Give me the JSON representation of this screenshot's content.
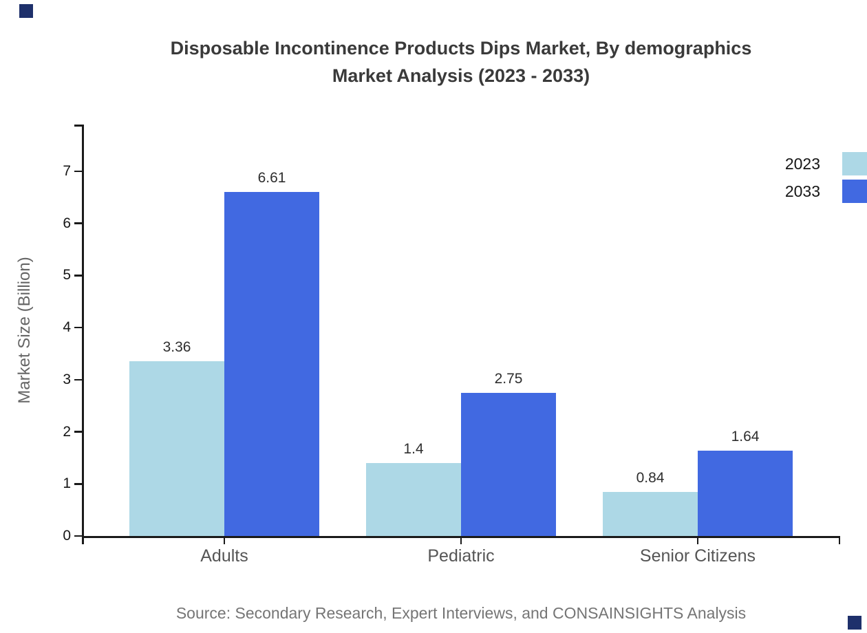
{
  "title": {
    "line1": "Disposable Incontinence Products Dips Market, By demographics",
    "line2": "Market Analysis (2023 - 2033)"
  },
  "source": "Source: Secondary Research, Expert Interviews, and CONSAINSIGHTS Analysis",
  "colors": {
    "series_2023": "#ADD8E6",
    "series_2033": "#4169E1",
    "axis": "#1a1a1a",
    "title_text": "#3a3a3a",
    "category_text": "#555555",
    "source_text": "#757575",
    "corner_mark": "#1e306b"
  },
  "chart_data": {
    "type": "bar",
    "title": "Disposable Incontinence Products Dips Market, By demographics Market Analysis (2023 - 2033)",
    "categories": [
      "Adults",
      "Pediatric",
      "Senior Citizens"
    ],
    "series": [
      {
        "name": "2023",
        "color": "#ADD8E6",
        "values": [
          3.36,
          1.4,
          0.84
        ]
      },
      {
        "name": "2033",
        "color": "#4169E1",
        "values": [
          6.61,
          2.75,
          1.64
        ]
      }
    ],
    "xlabel": "",
    "ylabel": "Market Size (Billion)",
    "ylim": [
      0,
      7.9
    ],
    "yticks": [
      0,
      1,
      2,
      3,
      4,
      5,
      6,
      7
    ],
    "grid": false,
    "legend_position": "top-right",
    "value_labels_shown": true
  }
}
